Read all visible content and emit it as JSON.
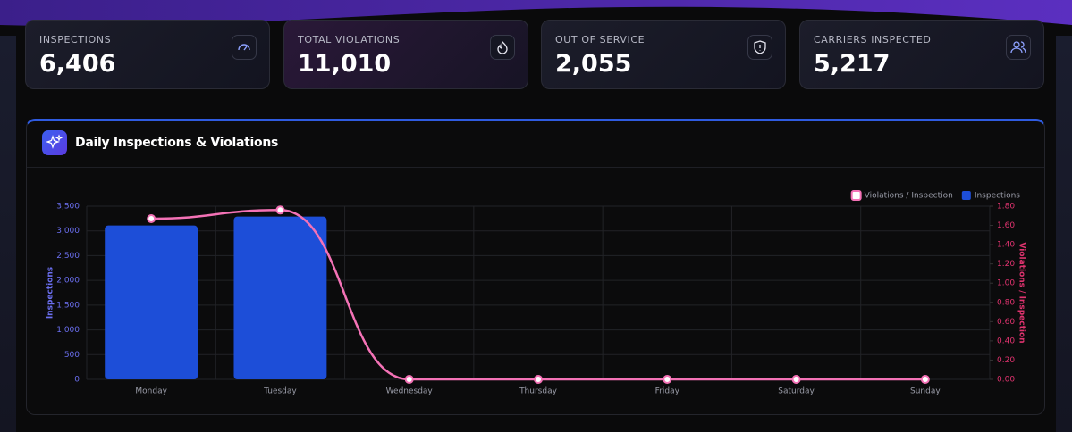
{
  "stats": [
    {
      "label": "INSPECTIONS",
      "value": "6,406"
    },
    {
      "label": "TOTAL VIOLATIONS",
      "value": "11,010"
    },
    {
      "label": "OUT OF SERVICE",
      "value": "2,055"
    },
    {
      "label": "CARRIERS INSPECTED",
      "value": "5,217"
    }
  ],
  "chart_data": {
    "type": "combo",
    "title": "Daily Inspections & Violations",
    "categories": [
      "Monday",
      "Tuesday",
      "Wednesday",
      "Thursday",
      "Friday",
      "Saturday",
      "Sunday"
    ],
    "series": [
      {
        "name": "Violations / Inspection",
        "type": "line",
        "axis": "y2",
        "color": "#f472b6",
        "values": [
          1.67,
          1.76,
          0,
          0,
          0,
          0,
          0
        ]
      },
      {
        "name": "Inspections",
        "type": "bar",
        "color": "#1d4ed8",
        "values": [
          3110,
          3290,
          0,
          0,
          0,
          0,
          0
        ]
      }
    ],
    "ylabel": "Inspections",
    "y2label": "Violations / Inspection",
    "ylim": [
      0,
      3500
    ],
    "yticks": [
      0,
      500,
      {
        "value": 1000,
        "label": "1,000"
      },
      {
        "value": 1500,
        "label": "1,500"
      },
      {
        "value": 2000,
        "label": "2,000"
      },
      {
        "value": 2500,
        "label": "2,500"
      },
      {
        "value": 3000,
        "label": "3,000"
      },
      {
        "value": 3500,
        "label": "3,500"
      }
    ],
    "y2lim": [
      0,
      1.8
    ],
    "y2ticks": [
      {
        "value": 0,
        "label": "0.00"
      },
      {
        "value": 0.2,
        "label": "0.20"
      },
      {
        "value": 0.4,
        "label": "0.40"
      },
      {
        "value": 0.6,
        "label": "0.60"
      },
      {
        "value": 0.8,
        "label": "0.80"
      },
      {
        "value": 1,
        "label": "1.00"
      },
      {
        "value": 1.2,
        "label": "1.20"
      },
      {
        "value": 1.4,
        "label": "1.40"
      },
      {
        "value": 1.6,
        "label": "1.60"
      },
      {
        "value": 1.8,
        "label": "1.80"
      }
    ],
    "grid": true,
    "legend": "top-right"
  }
}
